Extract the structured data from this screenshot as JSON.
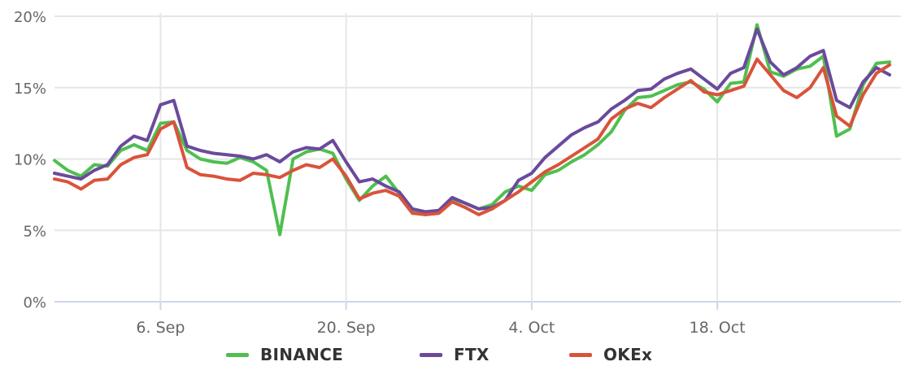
{
  "chart_data": {
    "type": "line",
    "title": "",
    "xlabel": "",
    "ylabel": "",
    "ylim": [
      0,
      20
    ],
    "xlim": [
      "2021-08-29",
      "2021-10-31"
    ],
    "y_ticks": [
      "0%",
      "5%",
      "10%",
      "15%",
      "20%"
    ],
    "x_ticks": [
      {
        "date": "2021-09-06",
        "label": "6. Sep"
      },
      {
        "date": "2021-09-20",
        "label": "20. Sep"
      },
      {
        "date": "2021-10-04",
        "label": "4. Oct"
      },
      {
        "date": "2021-10-18",
        "label": "18. Oct"
      }
    ],
    "grid": true,
    "legend_position": "bottom-center",
    "series": [
      {
        "name": "BINANCE",
        "color": "#4fbf4f",
        "points": [
          [
            "2021-08-29",
            9.9
          ],
          [
            "2021-08-30",
            9.2
          ],
          [
            "2021-08-31",
            8.8
          ],
          [
            "2021-09-01",
            9.6
          ],
          [
            "2021-09-02",
            9.5
          ],
          [
            "2021-09-03",
            10.6
          ],
          [
            "2021-09-04",
            11.0
          ],
          [
            "2021-09-05",
            10.6
          ],
          [
            "2021-09-06",
            12.5
          ],
          [
            "2021-09-07",
            12.6
          ],
          [
            "2021-09-08",
            10.6
          ],
          [
            "2021-09-09",
            10.0
          ],
          [
            "2021-09-10",
            9.8
          ],
          [
            "2021-09-11",
            9.7
          ],
          [
            "2021-09-12",
            10.1
          ],
          [
            "2021-09-13",
            9.8
          ],
          [
            "2021-09-14",
            9.2
          ],
          [
            "2021-09-15",
            4.7
          ],
          [
            "2021-09-16",
            10.0
          ],
          [
            "2021-09-17",
            10.5
          ],
          [
            "2021-09-18",
            10.7
          ],
          [
            "2021-09-19",
            10.4
          ],
          [
            "2021-09-20",
            8.6
          ],
          [
            "2021-09-21",
            7.1
          ],
          [
            "2021-09-22",
            8.1
          ],
          [
            "2021-09-23",
            8.8
          ],
          [
            "2021-09-24",
            7.6
          ],
          [
            "2021-09-25",
            6.3
          ],
          [
            "2021-09-26",
            6.1
          ],
          [
            "2021-09-27",
            6.3
          ],
          [
            "2021-09-28",
            7.2
          ],
          [
            "2021-09-29",
            6.9
          ],
          [
            "2021-09-30",
            6.5
          ],
          [
            "2021-10-01",
            6.8
          ],
          [
            "2021-10-02",
            7.7
          ],
          [
            "2021-10-03",
            8.1
          ],
          [
            "2021-10-04",
            7.8
          ],
          [
            "2021-10-05",
            8.9
          ],
          [
            "2021-10-06",
            9.2
          ],
          [
            "2021-10-07",
            9.8
          ],
          [
            "2021-10-08",
            10.3
          ],
          [
            "2021-10-09",
            11.0
          ],
          [
            "2021-10-10",
            11.9
          ],
          [
            "2021-10-11",
            13.4
          ],
          [
            "2021-10-12",
            14.3
          ],
          [
            "2021-10-13",
            14.4
          ],
          [
            "2021-10-14",
            14.8
          ],
          [
            "2021-10-15",
            15.2
          ],
          [
            "2021-10-16",
            15.4
          ],
          [
            "2021-10-17",
            14.9
          ],
          [
            "2021-10-18",
            14.0
          ],
          [
            "2021-10-19",
            15.3
          ],
          [
            "2021-10-20",
            15.4
          ],
          [
            "2021-10-21",
            19.4
          ],
          [
            "2021-10-22",
            16.1
          ],
          [
            "2021-10-23",
            15.8
          ],
          [
            "2021-10-24",
            16.3
          ],
          [
            "2021-10-25",
            16.5
          ],
          [
            "2021-10-26",
            17.2
          ],
          [
            "2021-10-27",
            11.6
          ],
          [
            "2021-10-28",
            12.1
          ],
          [
            "2021-10-29",
            15.2
          ],
          [
            "2021-10-30",
            16.7
          ],
          [
            "2021-10-31",
            16.8
          ]
        ]
      },
      {
        "name": "FTX",
        "color": "#6a4a9c",
        "points": [
          [
            "2021-08-29",
            9.0
          ],
          [
            "2021-08-30",
            8.8
          ],
          [
            "2021-08-31",
            8.6
          ],
          [
            "2021-09-01",
            9.2
          ],
          [
            "2021-09-02",
            9.6
          ],
          [
            "2021-09-03",
            10.9
          ],
          [
            "2021-09-04",
            11.6
          ],
          [
            "2021-09-05",
            11.3
          ],
          [
            "2021-09-06",
            13.8
          ],
          [
            "2021-09-07",
            14.1
          ],
          [
            "2021-09-08",
            10.9
          ],
          [
            "2021-09-09",
            10.6
          ],
          [
            "2021-09-10",
            10.4
          ],
          [
            "2021-09-11",
            10.3
          ],
          [
            "2021-09-12",
            10.2
          ],
          [
            "2021-09-13",
            10.0
          ],
          [
            "2021-09-14",
            10.3
          ],
          [
            "2021-09-15",
            9.8
          ],
          [
            "2021-09-16",
            10.5
          ],
          [
            "2021-09-17",
            10.8
          ],
          [
            "2021-09-18",
            10.7
          ],
          [
            "2021-09-19",
            11.3
          ],
          [
            "2021-09-20",
            9.8
          ],
          [
            "2021-09-21",
            8.4
          ],
          [
            "2021-09-22",
            8.6
          ],
          [
            "2021-09-23",
            8.1
          ],
          [
            "2021-09-24",
            7.7
          ],
          [
            "2021-09-25",
            6.5
          ],
          [
            "2021-09-26",
            6.3
          ],
          [
            "2021-09-27",
            6.4
          ],
          [
            "2021-09-28",
            7.3
          ],
          [
            "2021-09-29",
            6.9
          ],
          [
            "2021-09-30",
            6.5
          ],
          [
            "2021-10-01",
            6.6
          ],
          [
            "2021-10-02",
            7.1
          ],
          [
            "2021-10-03",
            8.5
          ],
          [
            "2021-10-04",
            9.0
          ],
          [
            "2021-10-05",
            10.1
          ],
          [
            "2021-10-06",
            10.9
          ],
          [
            "2021-10-07",
            11.7
          ],
          [
            "2021-10-08",
            12.2
          ],
          [
            "2021-10-09",
            12.6
          ],
          [
            "2021-10-10",
            13.5
          ],
          [
            "2021-10-11",
            14.1
          ],
          [
            "2021-10-12",
            14.8
          ],
          [
            "2021-10-13",
            14.9
          ],
          [
            "2021-10-14",
            15.6
          ],
          [
            "2021-10-15",
            16.0
          ],
          [
            "2021-10-16",
            16.3
          ],
          [
            "2021-10-17",
            15.6
          ],
          [
            "2021-10-18",
            14.9
          ],
          [
            "2021-10-19",
            16.0
          ],
          [
            "2021-10-20",
            16.4
          ],
          [
            "2021-10-21",
            19.1
          ],
          [
            "2021-10-22",
            16.8
          ],
          [
            "2021-10-23",
            15.9
          ],
          [
            "2021-10-24",
            16.4
          ],
          [
            "2021-10-25",
            17.2
          ],
          [
            "2021-10-26",
            17.6
          ],
          [
            "2021-10-27",
            14.1
          ],
          [
            "2021-10-28",
            13.6
          ],
          [
            "2021-10-29",
            15.4
          ],
          [
            "2021-10-30",
            16.4
          ],
          [
            "2021-10-31",
            15.9
          ]
        ]
      },
      {
        "name": "OKEx",
        "color": "#d9533b",
        "points": [
          [
            "2021-08-29",
            8.6
          ],
          [
            "2021-08-30",
            8.4
          ],
          [
            "2021-08-31",
            7.9
          ],
          [
            "2021-09-01",
            8.5
          ],
          [
            "2021-09-02",
            8.6
          ],
          [
            "2021-09-03",
            9.6
          ],
          [
            "2021-09-04",
            10.1
          ],
          [
            "2021-09-05",
            10.3
          ],
          [
            "2021-09-06",
            12.1
          ],
          [
            "2021-09-07",
            12.6
          ],
          [
            "2021-09-08",
            9.4
          ],
          [
            "2021-09-09",
            8.9
          ],
          [
            "2021-09-10",
            8.8
          ],
          [
            "2021-09-11",
            8.6
          ],
          [
            "2021-09-12",
            8.5
          ],
          [
            "2021-09-13",
            9.0
          ],
          [
            "2021-09-14",
            8.9
          ],
          [
            "2021-09-15",
            8.7
          ],
          [
            "2021-09-16",
            9.2
          ],
          [
            "2021-09-17",
            9.6
          ],
          [
            "2021-09-18",
            9.4
          ],
          [
            "2021-09-19",
            10.0
          ],
          [
            "2021-09-20",
            8.8
          ],
          [
            "2021-09-21",
            7.2
          ],
          [
            "2021-09-22",
            7.6
          ],
          [
            "2021-09-23",
            7.8
          ],
          [
            "2021-09-24",
            7.4
          ],
          [
            "2021-09-25",
            6.2
          ],
          [
            "2021-09-26",
            6.1
          ],
          [
            "2021-09-27",
            6.2
          ],
          [
            "2021-09-28",
            7.0
          ],
          [
            "2021-09-29",
            6.6
          ],
          [
            "2021-09-30",
            6.1
          ],
          [
            "2021-10-01",
            6.5
          ],
          [
            "2021-10-02",
            7.1
          ],
          [
            "2021-10-03",
            7.7
          ],
          [
            "2021-10-04",
            8.4
          ],
          [
            "2021-10-05",
            9.1
          ],
          [
            "2021-10-06",
            9.6
          ],
          [
            "2021-10-07",
            10.2
          ],
          [
            "2021-10-08",
            10.8
          ],
          [
            "2021-10-09",
            11.4
          ],
          [
            "2021-10-10",
            12.8
          ],
          [
            "2021-10-11",
            13.5
          ],
          [
            "2021-10-12",
            13.9
          ],
          [
            "2021-10-13",
            13.6
          ],
          [
            "2021-10-14",
            14.3
          ],
          [
            "2021-10-15",
            14.9
          ],
          [
            "2021-10-16",
            15.5
          ],
          [
            "2021-10-17",
            14.7
          ],
          [
            "2021-10-18",
            14.5
          ],
          [
            "2021-10-19",
            14.8
          ],
          [
            "2021-10-20",
            15.1
          ],
          [
            "2021-10-21",
            17.0
          ],
          [
            "2021-10-22",
            15.9
          ],
          [
            "2021-10-23",
            14.8
          ],
          [
            "2021-10-24",
            14.3
          ],
          [
            "2021-10-25",
            15.0
          ],
          [
            "2021-10-26",
            16.4
          ],
          [
            "2021-10-27",
            13.0
          ],
          [
            "2021-10-28",
            12.3
          ],
          [
            "2021-10-29",
            14.5
          ],
          [
            "2021-10-30",
            16.0
          ],
          [
            "2021-10-31",
            16.6
          ]
        ]
      }
    ]
  },
  "legend": {
    "items": [
      {
        "label": "BINANCE",
        "color": "#4fbf4f"
      },
      {
        "label": "FTX",
        "color": "#6a4a9c"
      },
      {
        "label": "OKEx",
        "color": "#d9533b"
      }
    ]
  }
}
